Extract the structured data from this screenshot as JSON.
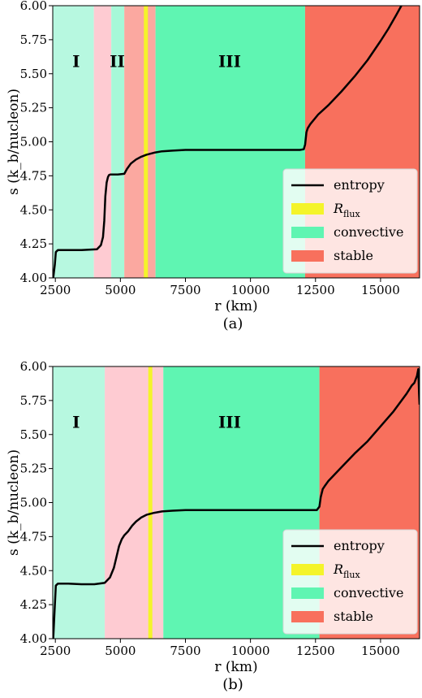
{
  "chart_data": [
    {
      "type": "line",
      "caption": "(a)",
      "xlabel": "r (km)",
      "ylabel": "s (k_b/nucleon)",
      "xlim": [
        2400,
        16500
      ],
      "ylim": [
        4.0,
        6.0
      ],
      "xticks": [
        2500,
        5000,
        7500,
        10000,
        12500,
        15000
      ],
      "yticks": [
        4.0,
        4.25,
        4.5,
        4.75,
        5.0,
        5.25,
        5.5,
        5.75,
        6.0
      ],
      "xtick_labels": [
        "2500",
        "5000",
        "7500",
        "10000",
        "12500",
        "15000"
      ],
      "ytick_labels": [
        "4.00",
        "4.25",
        "4.50",
        "4.75",
        "5.00",
        "5.25",
        "5.50",
        "5.75",
        "6.00"
      ],
      "legend": {
        "placement": "lower-right",
        "entries": [
          {
            "label": "entropy",
            "symbol": "line",
            "color": "#000000"
          },
          {
            "label": "R",
            "subscript": "flux",
            "symbol": "patch",
            "color": "#f4f42a"
          },
          {
            "label": "convective",
            "symbol": "patch",
            "color": "#5ff5b2"
          },
          {
            "label": "stable",
            "symbol": "patch",
            "color": "#f8705d"
          }
        ]
      },
      "bands": [
        {
          "x0": 2400,
          "x1": 3980,
          "color": "#b7f8e0"
        },
        {
          "x0": 3980,
          "x1": 4650,
          "color": "#fecbd2"
        },
        {
          "x0": 4650,
          "x1": 5150,
          "color": "#a6f8d8"
        },
        {
          "x0": 5150,
          "x1": 6350,
          "color": "#fba8a0"
        },
        {
          "x0": 6350,
          "x1": 12100,
          "color": "#5ff5b2"
        },
        {
          "x0": 12100,
          "x1": 16500,
          "color": "#f8705d"
        }
      ],
      "rflux": 5980,
      "region_labels": [
        {
          "text": "I",
          "x": 3300,
          "y": 5.55
        },
        {
          "text": "II",
          "x": 4880,
          "y": 5.55
        },
        {
          "text": "III",
          "x": 9200,
          "y": 5.55
        }
      ],
      "series": [
        {
          "x": [
            2420,
            2480,
            2520,
            2600,
            3000,
            3500,
            4100,
            4250,
            4330,
            4380,
            4420,
            4470,
            4520,
            4560,
            4620,
            4700,
            4900,
            5150,
            5250,
            5400,
            5600,
            5800,
            6000,
            6300,
            6600,
            7000,
            7500,
            8500,
            10000,
            11500,
            11900,
            12050,
            12100,
            12150,
            12200,
            12300,
            12600,
            13000,
            13500,
            14000,
            14500,
            15000,
            15300,
            15600,
            15800
          ],
          "y": [
            4.0,
            4.1,
            4.19,
            4.205,
            4.205,
            4.205,
            4.21,
            4.24,
            4.3,
            4.42,
            4.6,
            4.7,
            4.74,
            4.755,
            4.76,
            4.76,
            4.76,
            4.765,
            4.8,
            4.84,
            4.87,
            4.89,
            4.905,
            4.92,
            4.93,
            4.935,
            4.94,
            4.94,
            4.94,
            4.94,
            4.94,
            4.945,
            4.98,
            5.07,
            5.1,
            5.13,
            5.2,
            5.27,
            5.37,
            5.48,
            5.6,
            5.74,
            5.83,
            5.93,
            6.0
          ]
        }
      ]
    },
    {
      "type": "line",
      "caption": "(b)",
      "xlabel": "r (km)",
      "ylabel": "s (k_b/nucleon)",
      "xlim": [
        2400,
        16500
      ],
      "ylim": [
        4.0,
        6.0
      ],
      "xticks": [
        2500,
        5000,
        7500,
        10000,
        12500,
        15000
      ],
      "yticks": [
        4.0,
        4.25,
        4.5,
        4.75,
        5.0,
        5.25,
        5.5,
        5.75,
        6.0
      ],
      "xtick_labels": [
        "2500",
        "5000",
        "7500",
        "10000",
        "12500",
        "15000"
      ],
      "ytick_labels": [
        "4.00",
        "4.25",
        "4.50",
        "4.75",
        "5.00",
        "5.25",
        "5.50",
        "5.75",
        "6.00"
      ],
      "legend": {
        "placement": "lower-right",
        "entries": [
          {
            "label": "entropy",
            "symbol": "line",
            "color": "#000000"
          },
          {
            "label": "R",
            "subscript": "flux",
            "symbol": "patch",
            "color": "#f4f42a"
          },
          {
            "label": "convective",
            "symbol": "patch",
            "color": "#5ff5b2"
          },
          {
            "label": "stable",
            "symbol": "patch",
            "color": "#f8705d"
          }
        ]
      },
      "bands": [
        {
          "x0": 2400,
          "x1": 4400,
          "color": "#b7f8e0"
        },
        {
          "x0": 4400,
          "x1": 6650,
          "color": "#fecbd2"
        },
        {
          "x0": 6650,
          "x1": 12650,
          "color": "#5ff5b2"
        },
        {
          "x0": 12650,
          "x1": 16500,
          "color": "#f8705d"
        }
      ],
      "rflux": 6150,
      "region_labels": [
        {
          "text": "I",
          "x": 3300,
          "y": 5.55
        },
        {
          "text": "III",
          "x": 9200,
          "y": 5.55
        }
      ],
      "series": [
        {
          "x": [
            2420,
            2470,
            2520,
            2600,
            3000,
            3500,
            4000,
            4400,
            4600,
            4750,
            4850,
            4950,
            5050,
            5150,
            5300,
            5450,
            5600,
            5800,
            6000,
            6300,
            6600,
            7000,
            7500,
            8500,
            10000,
            12000,
            12550,
            12650,
            12700,
            12780,
            12850,
            13000,
            13500,
            14000,
            14500,
            15000,
            15500,
            16000,
            16200,
            16300,
            16400,
            16450,
            16480,
            16500
          ],
          "y": [
            4.0,
            4.2,
            4.39,
            4.405,
            4.405,
            4.4,
            4.4,
            4.41,
            4.45,
            4.52,
            4.6,
            4.68,
            4.73,
            4.76,
            4.79,
            4.83,
            4.86,
            4.89,
            4.91,
            4.925,
            4.935,
            4.94,
            4.945,
            4.945,
            4.945,
            4.945,
            4.945,
            4.97,
            5.04,
            5.1,
            5.12,
            5.16,
            5.26,
            5.36,
            5.45,
            5.56,
            5.67,
            5.8,
            5.86,
            5.88,
            5.93,
            5.98,
            5.8,
            5.72
          ]
        }
      ]
    }
  ]
}
